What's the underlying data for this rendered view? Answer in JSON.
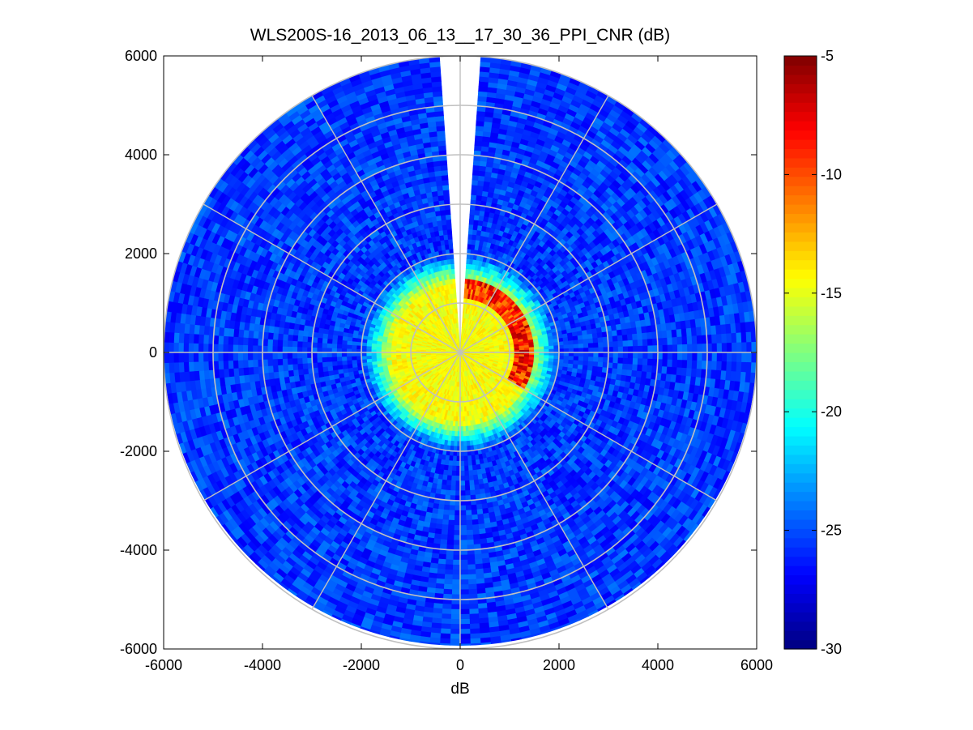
{
  "chart_data": {
    "type": "heatmap",
    "subtype": "polar-ppi",
    "title": "WLS200S-16_2013_06_13__17_30_36_PPI_CNR (dB)",
    "xlabel": "dB",
    "ylabel": "",
    "xlim": [
      -6000,
      6000
    ],
    "ylim": [
      -6000,
      6000
    ],
    "x_ticks": [
      -6000,
      -4000,
      -2000,
      0,
      2000,
      4000,
      6000
    ],
    "y_ticks": [
      6000,
      4000,
      2000,
      0,
      -2000,
      -4000,
      -6000
    ],
    "x_tick_labels": [
      "-6000",
      "-4000",
      "-2000",
      "0",
      "2000",
      "4000",
      "6000"
    ],
    "y_tick_labels": [
      "6000",
      "4000",
      "2000",
      "0",
      "-2000",
      "-4000",
      "-6000"
    ],
    "max_range": 6000,
    "range_rings": [
      1000,
      2000,
      3000,
      4000,
      5000,
      6000
    ],
    "spokes_every_deg": 30,
    "missing_sector_deg": [
      -4,
      4
    ],
    "colormap": "jet",
    "colorbar": {
      "min": -30,
      "max": -5,
      "ticks": [
        -5,
        -10,
        -15,
        -20,
        -25,
        -30
      ],
      "tick_labels": [
        "-5",
        "-10",
        "-15",
        "-20",
        "-25",
        "-30"
      ]
    },
    "cnr_profile": {
      "near_field_db": -14.5,
      "near_field_radius": 1400,
      "transition_radius": 2000,
      "far_field_db": -25.5,
      "hot_arc_db": -6,
      "hot_arc_radius": [
        1100,
        1500
      ],
      "hot_arc_azimuth_deg": [
        0,
        120
      ]
    },
    "colors": {
      "grid": "#c0c0c0",
      "axis": "#000000",
      "background": "#ffffff"
    }
  }
}
